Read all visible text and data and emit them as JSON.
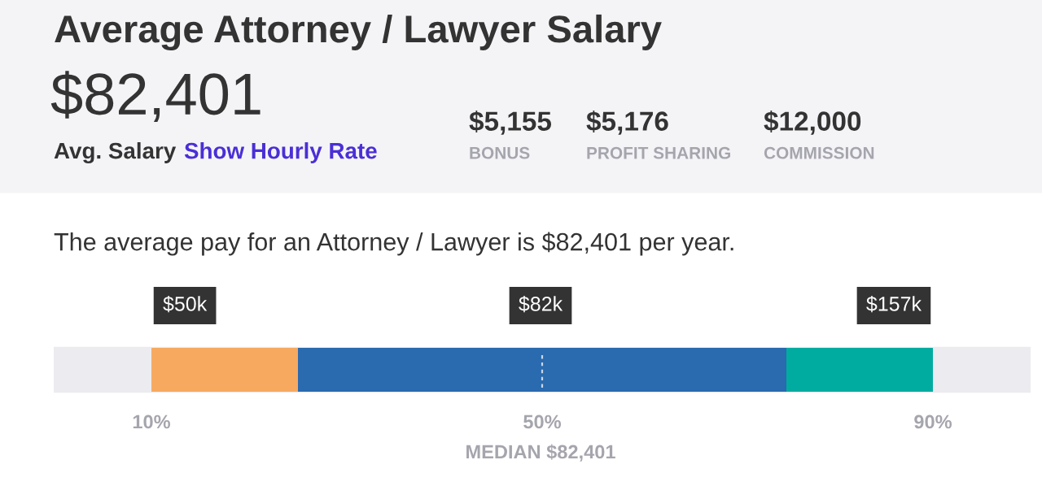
{
  "chart_data": {
    "type": "bar",
    "orientation": "horizontal",
    "title": "Average Attorney / Lawyer Salary",
    "subtitle": "The average pay for an Attorney / Lawyer is $82,401 per year.",
    "categories": [
      null
    ],
    "series": [
      {
        "color": "#f7a960",
        "base": [
          10
        ],
        "values": [
          15
        ]
      },
      {
        "color": "#2a6aae",
        "base": [
          25
        ],
        "values": [
          50
        ]
      },
      {
        "color": "#00aca0",
        "base": [
          75
        ],
        "values": [
          15
        ]
      }
    ],
    "xlim": [
      0,
      100
    ],
    "xticks": [
      {
        "value": 10,
        "label": "10%"
      },
      {
        "value": 50,
        "label": "50%"
      },
      {
        "value": 90,
        "label": "90%"
      }
    ],
    "ref_lines": [
      {
        "axis": "x",
        "value": 50,
        "color": "#c9d6e8",
        "line_style": "dashed"
      }
    ],
    "annotations": [
      "$82,401",
      "Avg. Salary",
      "Show Hourly Rate",
      "$5,155",
      "BONUS",
      "$5,176",
      "PROFIT SHARING",
      "$12,000",
      "COMMISSION",
      "$50k",
      "$82k",
      "$157k",
      "MEDIAN $82,401"
    ],
    "grid": false,
    "legend": false
  }
}
